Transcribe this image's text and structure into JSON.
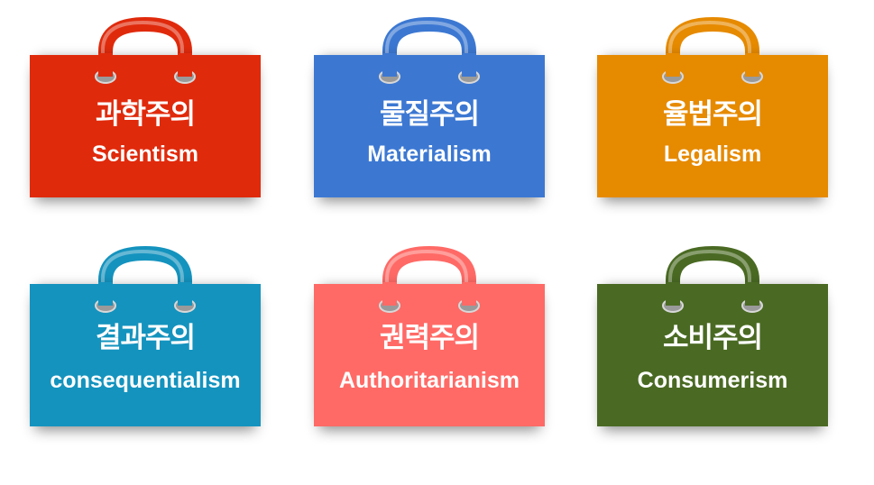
{
  "bags": [
    {
      "korean": "과학주의",
      "english": "Scientism",
      "color": "#E02A0C"
    },
    {
      "korean": "물질주의",
      "english": "Materialism",
      "color": "#3C78D2"
    },
    {
      "korean": "율법주의",
      "english": "Legalism",
      "color": "#E68A00"
    },
    {
      "korean": "결과주의",
      "english": "consequentialism",
      "color": "#1493BE"
    },
    {
      "korean": "권력주의",
      "english": "Authoritarianism",
      "color": "#FF6A66"
    },
    {
      "korean": "소비주의",
      "english": "Consumerism",
      "color": "#4A6A23"
    }
  ]
}
